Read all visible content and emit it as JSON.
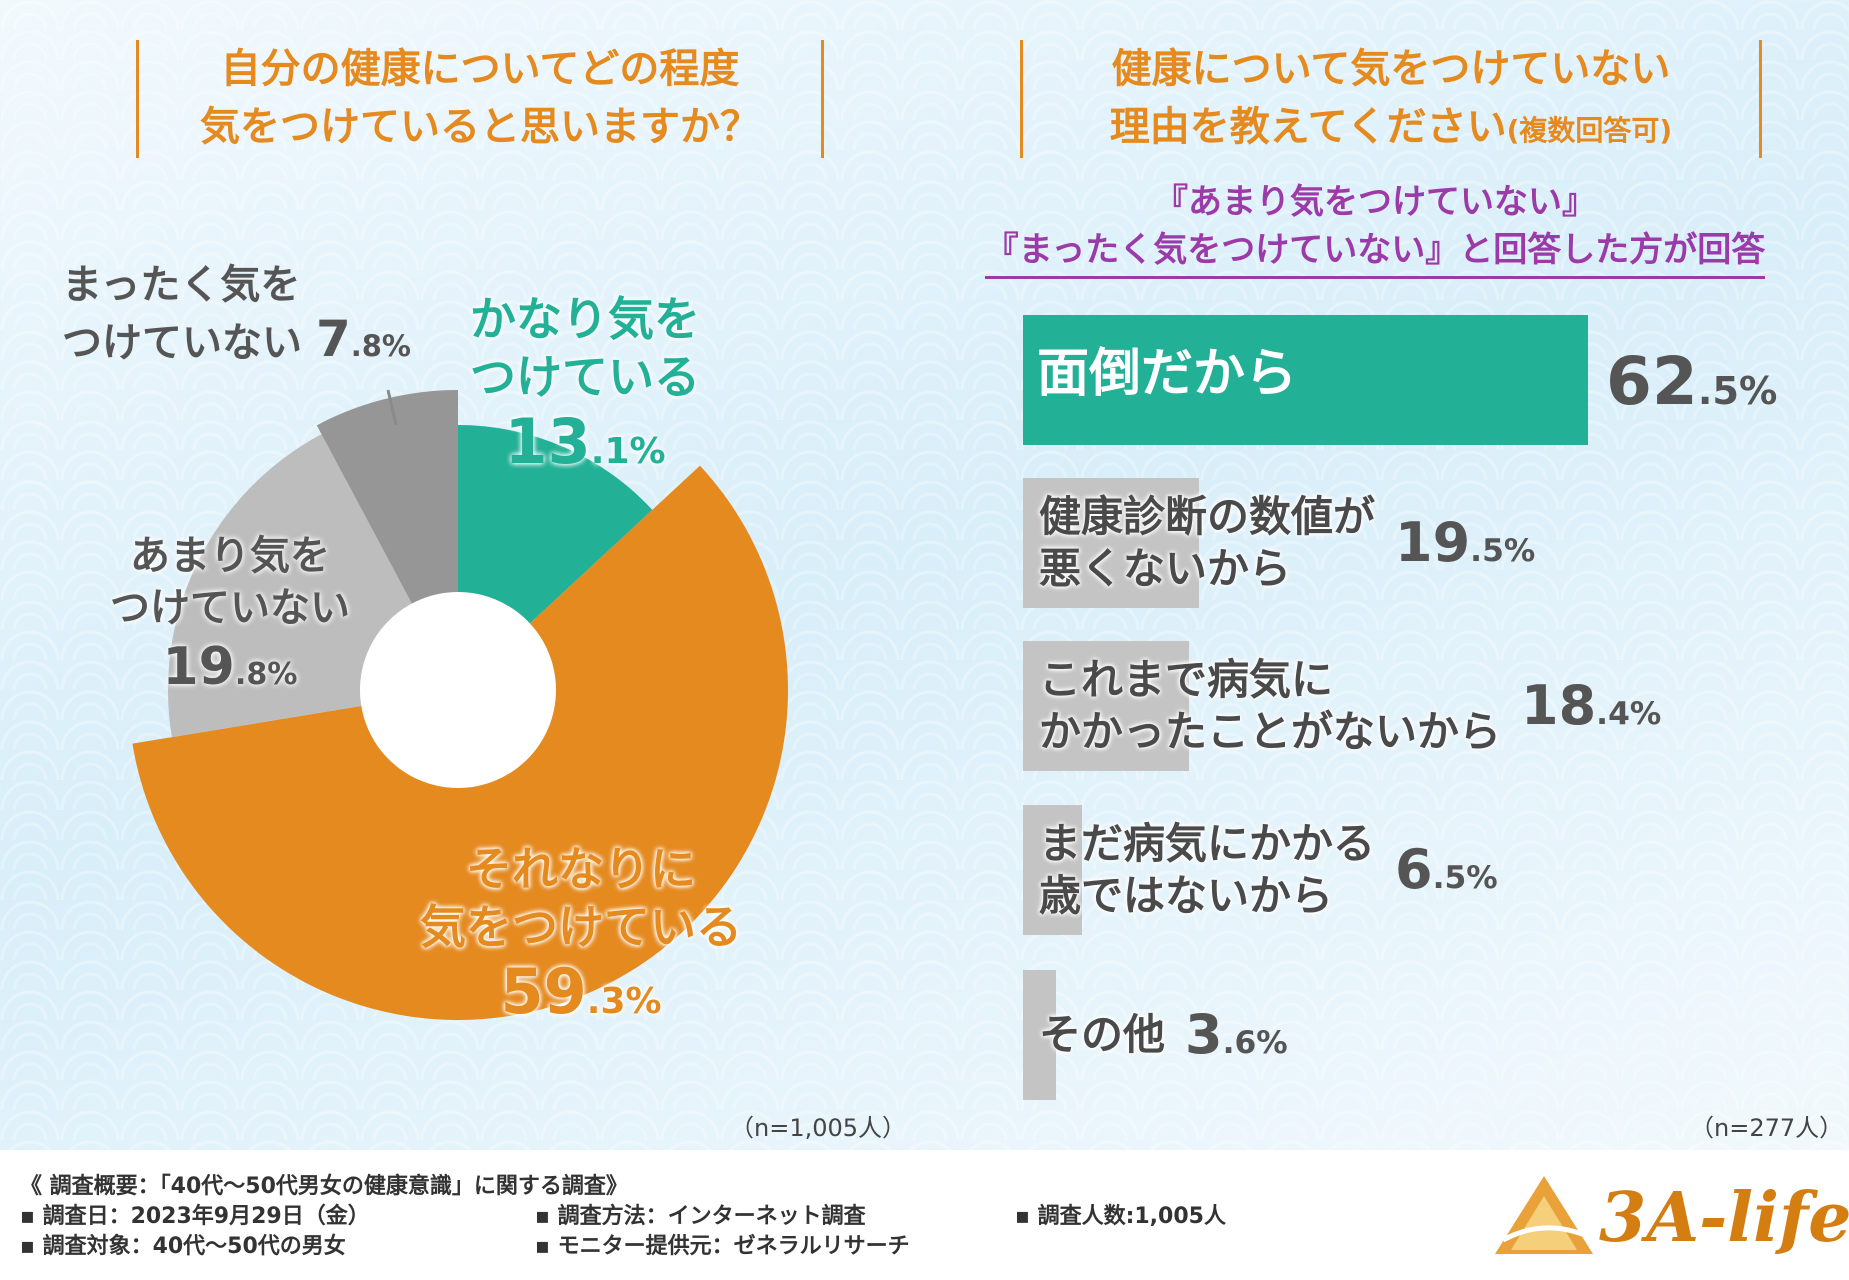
{
  "left_title": {
    "line1": "自分の健康についてどの程度",
    "line2": "気をつけていると思いますか？"
  },
  "right_title": {
    "line1": "健康について気をつけていない",
    "line2": "理由を教えてください",
    "note": "(複数回答可)"
  },
  "qualifier": {
    "line1": "『あまり気をつけていない』",
    "line2": "『まったく気をつけていない』と回答した方が回答"
  },
  "chart_data": [
    {
      "type": "pie",
      "title": "自分の健康についてどの程度気をつけていると思いますか？",
      "slices": [
        {
          "label_line1": "かなり気を",
          "label_line2": "つけている",
          "value": 13.1,
          "value_int": "13",
          "value_dec": ".1%",
          "color": "#22b196"
        },
        {
          "label_line1": "それなりに",
          "label_line2": "気をつけている",
          "value": 59.3,
          "value_int": "59",
          "value_dec": ".3%",
          "color": "#e58a1f"
        },
        {
          "label_line1": "あまり気を",
          "label_line2": "つけていない",
          "value": 19.8,
          "value_int": "19",
          "value_dec": ".8%",
          "color": "#bdbdbd"
        },
        {
          "label_line1": "まったく気を",
          "label_line2": "つけていない",
          "value": 7.8,
          "value_int": "7",
          "value_dec": ".8%",
          "color": "#969696"
        }
      ],
      "n_note": "（n=1,005人）"
    },
    {
      "type": "bar",
      "title": "健康について気をつけていない理由を教えてください(複数回答可)",
      "xlim": [
        0,
        62.5
      ],
      "bars": [
        {
          "label_line1": "面倒だから",
          "label_line2": "",
          "value": 62.5,
          "value_int": "62",
          "value_dec": ".5%",
          "color": "#22b196"
        },
        {
          "label_line1": "健康診断の数値が",
          "label_line2": "悪くないから",
          "value": 19.5,
          "value_int": "19",
          "value_dec": ".5%",
          "color": "#c4c4c4"
        },
        {
          "label_line1": "これまで病気に",
          "label_line2": "かかったことがないから",
          "value": 18.4,
          "value_int": "18",
          "value_dec": ".4%",
          "color": "#c4c4c4"
        },
        {
          "label_line1": "まだ病気にかかる",
          "label_line2": "歳ではないから",
          "value": 6.5,
          "value_int": "6",
          "value_dec": ".5%",
          "color": "#c4c4c4"
        },
        {
          "label_line1": "その他",
          "label_line2": "",
          "value": 3.6,
          "value_int": "3",
          "value_dec": ".6%",
          "color": "#c4c4c4"
        }
      ],
      "n_note": "（n=277人）"
    }
  ],
  "footer": {
    "summary": "《 調査概要：「40代～50代男女の健康意識」に関する調査》",
    "date": "▪ 調査日：2023年9月29日（金）",
    "target": "▪ 調査対象：40代～50代の男女",
    "method": "▪ 調査方法：インターネット調査",
    "provider": "▪ モニター提供元：ゼネラルリサーチ",
    "count": "▪ 調査人数:1,005人",
    "logo": "3A-life"
  }
}
